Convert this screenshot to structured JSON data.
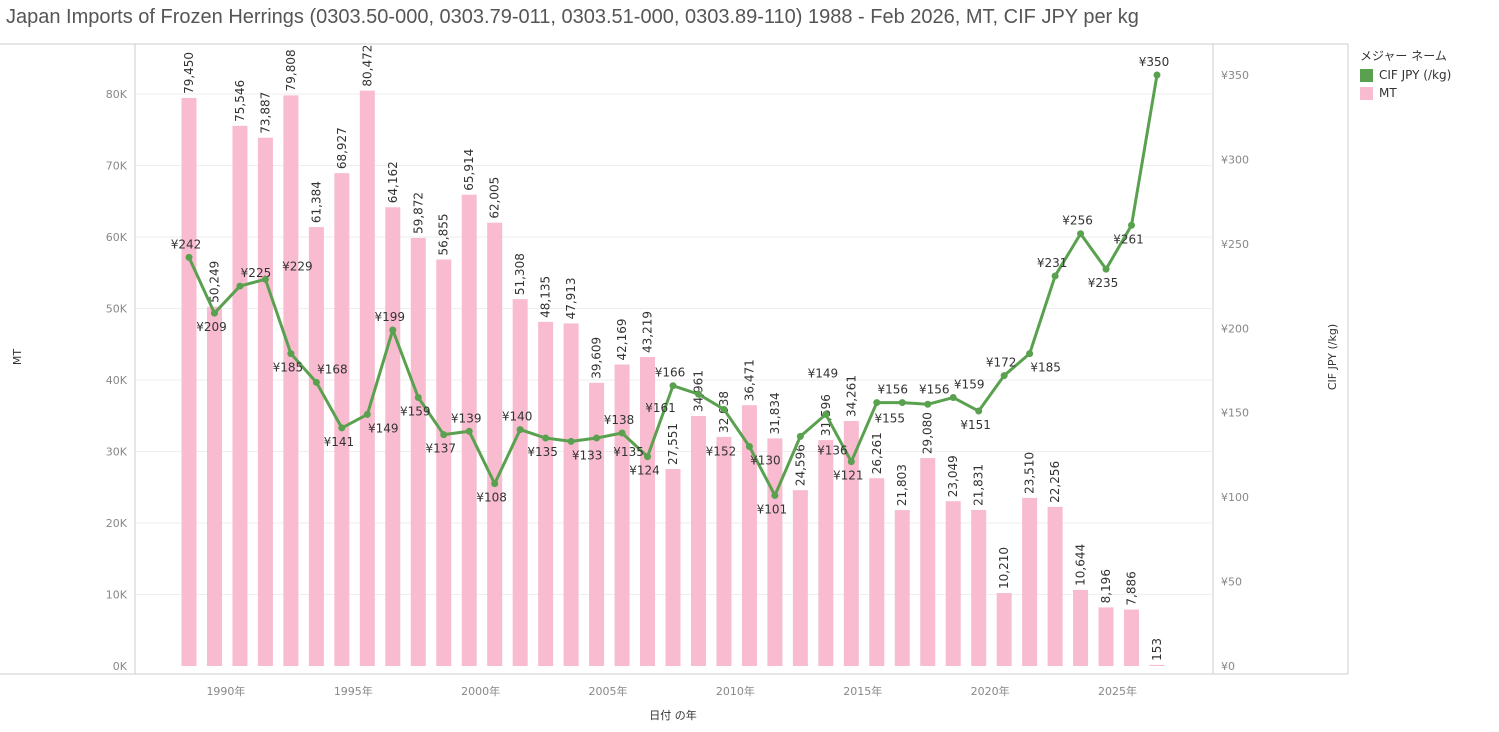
{
  "chart_data": {
    "type": "bar+line",
    "title": "Japan Imports of Frozen Herrings (0303.50-000, 0303.79-011, 0303.51-000, 0303.89-110) 1988 - Feb 2026, MT, CIF JPY per kg",
    "xlabel": "日付 の年",
    "ylabel_left": "MT",
    "ylabel_right": "CIF JPY (/kg)",
    "x": [
      1988,
      1989,
      1990,
      1991,
      1992,
      1993,
      1994,
      1995,
      1996,
      1997,
      1998,
      1999,
      2000,
      2001,
      2002,
      2003,
      2004,
      2005,
      2006,
      2007,
      2008,
      2009,
      2010,
      2011,
      2012,
      2013,
      2014,
      2015,
      2016,
      2017,
      2018,
      2019,
      2020,
      2021,
      2022,
      2023,
      2024,
      2025,
      2026
    ],
    "x_ticks": [
      1990,
      1995,
      2000,
      2005,
      2010,
      2015,
      2020,
      2025
    ],
    "x_tick_suffix": "年",
    "left_ticks": [
      "0K",
      "10K",
      "20K",
      "30K",
      "40K",
      "50K",
      "60K",
      "70K",
      "80K"
    ],
    "right_ticks": [
      "¥0",
      "¥50",
      "¥100",
      "¥150",
      "¥200",
      "¥250",
      "¥300",
      "¥350"
    ],
    "ylim_left": [
      0,
      80000
    ],
    "ylim_right": [
      0,
      350
    ],
    "legend_title": "メジャー ネーム",
    "legend_position": "right",
    "series": [
      {
        "name": "CIF JPY (/kg)",
        "type": "line",
        "color": "#59a14f",
        "prefix": "¥",
        "values": [
          242,
          209,
          225,
          229,
          185,
          168,
          141,
          149,
          199,
          159,
          137,
          139,
          108,
          140,
          135,
          133,
          135,
          138,
          124,
          166,
          161,
          152,
          130,
          101,
          136,
          149,
          121,
          156,
          156,
          155,
          159,
          151,
          172,
          185,
          231,
          256,
          235,
          261,
          350
        ]
      },
      {
        "name": "MT",
        "type": "bar",
        "color": "#f8bbd0",
        "values": [
          79450,
          50249,
          75546,
          73887,
          79808,
          61384,
          68927,
          80472,
          64162,
          59872,
          56855,
          65914,
          62005,
          51308,
          48135,
          47913,
          39609,
          42169,
          43219,
          27551,
          34961,
          32038,
          36471,
          31834,
          24596,
          31596,
          34261,
          26261,
          21803,
          29080,
          23049,
          21831,
          10210,
          23510,
          22256,
          10644,
          8196,
          7886,
          153
        ]
      }
    ]
  }
}
